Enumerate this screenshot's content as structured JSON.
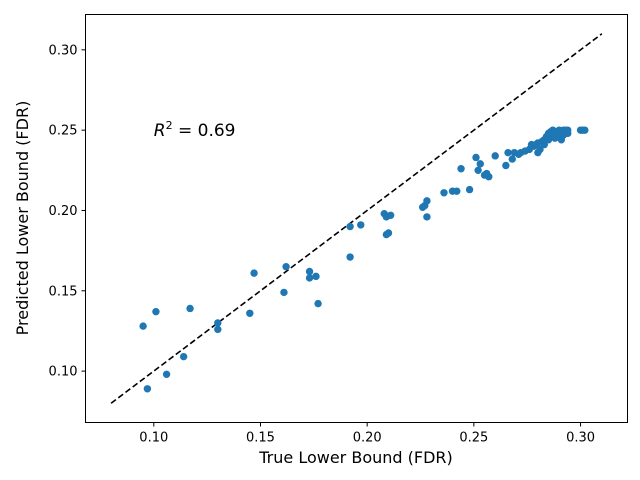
{
  "chart_data": {
    "type": "scatter",
    "title": "",
    "xlabel": "True Lower Bound (FDR)",
    "ylabel": "Predicted Lower Bound (FDR)",
    "xlim": [
      0.068,
      0.322
    ],
    "ylim": [
      0.068,
      0.322
    ],
    "xticks": [
      0.1,
      0.15,
      0.2,
      0.25,
      0.3
    ],
    "yticks": [
      0.1,
      0.15,
      0.2,
      0.25,
      0.3
    ],
    "xtick_labels": [
      "0.10",
      "0.15",
      "0.20",
      "0.25",
      "0.30"
    ],
    "ytick_labels": [
      "0.10",
      "0.15",
      "0.20",
      "0.25",
      "0.30"
    ],
    "grid": false,
    "point_color": "#1f77b4",
    "reference_line": {
      "style": "dashed",
      "color": "#000000",
      "from": [
        0.08,
        0.08
      ],
      "to": [
        0.31,
        0.31
      ]
    },
    "annotation": {
      "text_prefix": "R",
      "superscript": "2",
      "text_suffix": " = 0.69",
      "x": 0.1,
      "y": 0.25
    },
    "points": [
      [
        0.095,
        0.128
      ],
      [
        0.097,
        0.089
      ],
      [
        0.101,
        0.137
      ],
      [
        0.106,
        0.098
      ],
      [
        0.114,
        0.109
      ],
      [
        0.117,
        0.139
      ],
      [
        0.13,
        0.13
      ],
      [
        0.13,
        0.126
      ],
      [
        0.145,
        0.136
      ],
      [
        0.147,
        0.161
      ],
      [
        0.161,
        0.149
      ],
      [
        0.162,
        0.165
      ],
      [
        0.173,
        0.158
      ],
      [
        0.173,
        0.162
      ],
      [
        0.176,
        0.159
      ],
      [
        0.177,
        0.142
      ],
      [
        0.192,
        0.19
      ],
      [
        0.192,
        0.171
      ],
      [
        0.197,
        0.191
      ],
      [
        0.208,
        0.198
      ],
      [
        0.209,
        0.185
      ],
      [
        0.209,
        0.196
      ],
      [
        0.21,
        0.186
      ],
      [
        0.211,
        0.197
      ],
      [
        0.226,
        0.202
      ],
      [
        0.227,
        0.203
      ],
      [
        0.228,
        0.206
      ],
      [
        0.228,
        0.196
      ],
      [
        0.236,
        0.211
      ],
      [
        0.24,
        0.212
      ],
      [
        0.242,
        0.212
      ],
      [
        0.244,
        0.226
      ],
      [
        0.248,
        0.213
      ],
      [
        0.251,
        0.233
      ],
      [
        0.252,
        0.225
      ],
      [
        0.253,
        0.229
      ],
      [
        0.255,
        0.222
      ],
      [
        0.256,
        0.223
      ],
      [
        0.257,
        0.221
      ],
      [
        0.26,
        0.234
      ],
      [
        0.265,
        0.228
      ],
      [
        0.266,
        0.236
      ],
      [
        0.268,
        0.232
      ],
      [
        0.269,
        0.236
      ],
      [
        0.271,
        0.235
      ],
      [
        0.272,
        0.236
      ],
      [
        0.274,
        0.237
      ],
      [
        0.276,
        0.238
      ],
      [
        0.277,
        0.241
      ],
      [
        0.278,
        0.24
      ],
      [
        0.279,
        0.241
      ],
      [
        0.28,
        0.236
      ],
      [
        0.28,
        0.242
      ],
      [
        0.281,
        0.238
      ],
      [
        0.282,
        0.243
      ],
      [
        0.283,
        0.241
      ],
      [
        0.283,
        0.244
      ],
      [
        0.284,
        0.246
      ],
      [
        0.285,
        0.244
      ],
      [
        0.285,
        0.248
      ],
      [
        0.286,
        0.246
      ],
      [
        0.286,
        0.249
      ],
      [
        0.287,
        0.247
      ],
      [
        0.287,
        0.25
      ],
      [
        0.288,
        0.245
      ],
      [
        0.288,
        0.249
      ],
      [
        0.289,
        0.246
      ],
      [
        0.289,
        0.248
      ],
      [
        0.29,
        0.249
      ],
      [
        0.29,
        0.25
      ],
      [
        0.291,
        0.244
      ],
      [
        0.291,
        0.248
      ],
      [
        0.292,
        0.247
      ],
      [
        0.292,
        0.25
      ],
      [
        0.293,
        0.249
      ],
      [
        0.293,
        0.25
      ],
      [
        0.294,
        0.248
      ],
      [
        0.294,
        0.25
      ],
      [
        0.3,
        0.25
      ],
      [
        0.301,
        0.25
      ],
      [
        0.302,
        0.25
      ]
    ]
  }
}
